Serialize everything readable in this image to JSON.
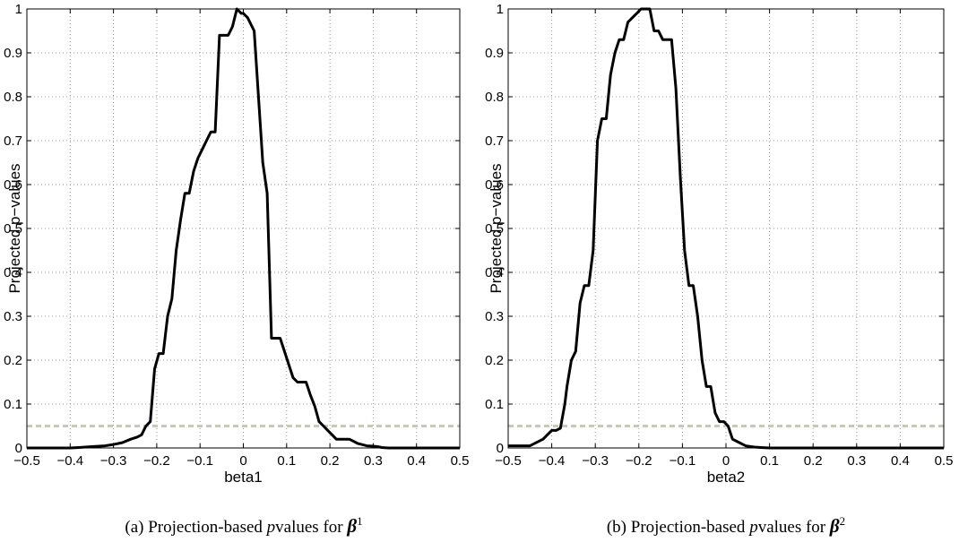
{
  "chart_data": [
    {
      "type": "line",
      "xlabel": "beta1",
      "ylabel": "Projected p−values",
      "xlim": [
        -0.5,
        0.5
      ],
      "ylim": [
        0,
        1
      ],
      "grid": true,
      "xticks": [
        "−0.5",
        "−0.4",
        "−0.3",
        "−0.2",
        "−0.1",
        "0",
        "0.1",
        "0.2",
        "0.3",
        "0.4",
        "0.5"
      ],
      "yticks": [
        "0",
        "0.1",
        "0.2",
        "0.3",
        "0.4",
        "0.5",
        "0.6",
        "0.7",
        "0.8",
        "0.9",
        "1"
      ],
      "threshold": 0.05,
      "caption": {
        "prefix": "(a)  Projection-based ",
        "italic": "p",
        "mid": "values for ",
        "symbol": "β",
        "sup": "1"
      },
      "series": [
        {
          "x": [
            -0.5,
            -0.4,
            -0.38,
            -0.35,
            -0.32,
            -0.3,
            -0.28,
            -0.26,
            -0.245,
            -0.235,
            -0.225,
            -0.215,
            -0.205,
            -0.195,
            -0.185,
            -0.175,
            -0.165,
            -0.155,
            -0.145,
            -0.135,
            -0.125,
            -0.115,
            -0.105,
            -0.095,
            -0.085,
            -0.075,
            -0.065,
            -0.055,
            -0.045,
            -0.035,
            -0.025,
            -0.015,
            -0.005,
            0.0,
            0.01,
            0.025,
            0.035,
            0.045,
            0.055,
            0.065,
            0.075,
            0.085,
            0.095,
            0.105,
            0.115,
            0.125,
            0.135,
            0.145,
            0.155,
            0.165,
            0.175,
            0.185,
            0.195,
            0.205,
            0.215,
            0.225,
            0.245,
            0.265,
            0.285,
            0.3,
            0.31,
            0.32,
            0.335,
            0.35,
            0.5
          ],
          "y": [
            0,
            0,
            0.001,
            0.003,
            0.005,
            0.008,
            0.012,
            0.02,
            0.025,
            0.03,
            0.05,
            0.06,
            0.18,
            0.215,
            0.215,
            0.3,
            0.34,
            0.45,
            0.52,
            0.58,
            0.58,
            0.63,
            0.66,
            0.68,
            0.7,
            0.72,
            0.72,
            0.94,
            0.94,
            0.94,
            0.96,
            1.0,
            0.99,
            0.99,
            0.98,
            0.95,
            0.8,
            0.65,
            0.58,
            0.25,
            0.25,
            0.25,
            0.22,
            0.19,
            0.16,
            0.15,
            0.15,
            0.15,
            0.12,
            0.095,
            0.06,
            0.05,
            0.04,
            0.03,
            0.02,
            0.02,
            0.02,
            0.01,
            0.005,
            0.004,
            0.003,
            0.001,
            0,
            0,
            0
          ]
        }
      ]
    },
    {
      "type": "line",
      "xlabel": "beta2",
      "ylabel": "Projected p−values",
      "xlim": [
        -0.5,
        0.5
      ],
      "ylim": [
        0,
        1
      ],
      "grid": true,
      "xticks": [
        "−0.5",
        "−0.4",
        "−0.3",
        "−0.2",
        "−0.1",
        "0",
        "0.1",
        "0.2",
        "0.3",
        "0.4",
        "0.5"
      ],
      "yticks": [
        "0",
        "0.1",
        "0.2",
        "0.3",
        "0.4",
        "0.5",
        "0.6",
        "0.7",
        "0.8",
        "0.9",
        "1"
      ],
      "threshold": 0.05,
      "caption": {
        "prefix": "(b)  Projection-based ",
        "italic": "p",
        "mid": "values for ",
        "symbol": "β",
        "sup": "2"
      },
      "series": [
        {
          "x": [
            -0.5,
            -0.45,
            -0.44,
            -0.42,
            -0.41,
            -0.4,
            -0.39,
            -0.38,
            -0.37,
            -0.365,
            -0.355,
            -0.345,
            -0.335,
            -0.325,
            -0.315,
            -0.305,
            -0.295,
            -0.285,
            -0.275,
            -0.265,
            -0.255,
            -0.245,
            -0.235,
            -0.225,
            -0.215,
            -0.205,
            -0.195,
            -0.185,
            -0.175,
            -0.165,
            -0.155,
            -0.145,
            -0.135,
            -0.125,
            -0.115,
            -0.105,
            -0.095,
            -0.085,
            -0.075,
            -0.065,
            -0.055,
            -0.045,
            -0.035,
            -0.025,
            -0.015,
            -0.005,
            0.005,
            0.015,
            0.025,
            0.045,
            0.065,
            0.08,
            0.1,
            0.5
          ],
          "y": [
            0.005,
            0.005,
            0.01,
            0.02,
            0.03,
            0.04,
            0.04,
            0.045,
            0.1,
            0.14,
            0.2,
            0.22,
            0.33,
            0.37,
            0.37,
            0.45,
            0.7,
            0.75,
            0.75,
            0.85,
            0.9,
            0.93,
            0.93,
            0.97,
            0.98,
            0.99,
            1.0,
            1.0,
            1.0,
            0.95,
            0.95,
            0.93,
            0.93,
            0.93,
            0.82,
            0.62,
            0.45,
            0.37,
            0.37,
            0.3,
            0.2,
            0.14,
            0.14,
            0.08,
            0.06,
            0.06,
            0.05,
            0.02,
            0.015,
            0.005,
            0.002,
            0.001,
            0,
            0
          ]
        }
      ]
    }
  ]
}
